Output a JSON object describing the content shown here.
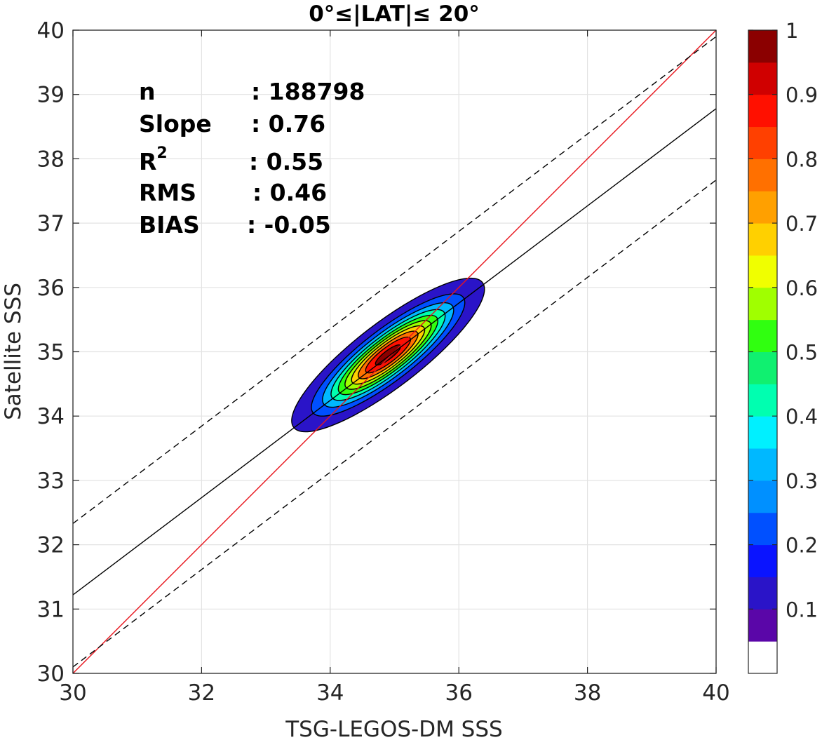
{
  "chart_data": {
    "type": "heatmap",
    "subtype": "density-scatter-contour",
    "title": "0°≤|LAT|≤ 20°",
    "xlabel": "TSG-LEGOS-DM SSS",
    "ylabel": "Satellite SSS",
    "xlim": [
      30,
      40
    ],
    "ylim": [
      30,
      40
    ],
    "xticks": [
      30,
      32,
      34,
      36,
      38,
      40
    ],
    "yticks": [
      30,
      31,
      32,
      33,
      34,
      35,
      36,
      37,
      38,
      39,
      40
    ],
    "grid": true,
    "stats": [
      {
        "name": "n",
        "sup": "",
        "value": ": 188798"
      },
      {
        "name": "Slope",
        "sup": "",
        "value": ": 0.76"
      },
      {
        "name": "R",
        "sup": "2",
        "value": ": 0.55"
      },
      {
        "name": "RMS",
        "sup": "",
        "value": ": 0.46"
      },
      {
        "name": "BIAS",
        "sup": "",
        "value": ": -0.05"
      }
    ],
    "lines": [
      {
        "role": "one-to-one",
        "color": "#e8141c",
        "dash": "solid",
        "points": [
          [
            30,
            30
          ],
          [
            40,
            40
          ]
        ]
      },
      {
        "role": "regression",
        "color": "#000000",
        "dash": "solid",
        "points": [
          [
            30,
            31.22
          ],
          [
            40,
            38.78
          ]
        ]
      },
      {
        "role": "upper-bound",
        "color": "#000000",
        "dash": "dashed",
        "points": [
          [
            30,
            32.33
          ],
          [
            40,
            39.9
          ]
        ]
      },
      {
        "role": "lower-bound",
        "color": "#000000",
        "dash": "dashed",
        "points": [
          [
            30,
            30.1
          ],
          [
            40,
            37.67
          ]
        ]
      }
    ],
    "density": {
      "center": [
        34.9,
        34.95
      ],
      "angle_deg": 37.5,
      "semi_major": 1.85,
      "semi_minor": 0.5,
      "levels": [
        0.05,
        0.15,
        0.25,
        0.35,
        0.45,
        0.55,
        0.65,
        0.75,
        0.85,
        0.95
      ]
    },
    "colorbar": {
      "range": [
        0,
        1
      ],
      "tick_labels": [
        "0.1",
        "0.2",
        "0.3",
        "0.4",
        "0.5",
        "0.6",
        "0.7",
        "0.8",
        "0.9",
        "1"
      ],
      "tick_values": [
        0.1,
        0.2,
        0.3,
        0.4,
        0.5,
        0.6,
        0.7,
        0.8,
        0.9,
        1.0
      ],
      "colors": [
        "#ffffff",
        "#5a06a8",
        "#2a14c8",
        "#0a14ff",
        "#0050ff",
        "#0090ff",
        "#00b8ff",
        "#00f0ff",
        "#00ffb0",
        "#10f070",
        "#30ff10",
        "#a0ff00",
        "#f0ff00",
        "#ffd000",
        "#ffa000",
        "#ff7000",
        "#ff4000",
        "#ff1000",
        "#d00000",
        "#8b0000"
      ]
    }
  }
}
